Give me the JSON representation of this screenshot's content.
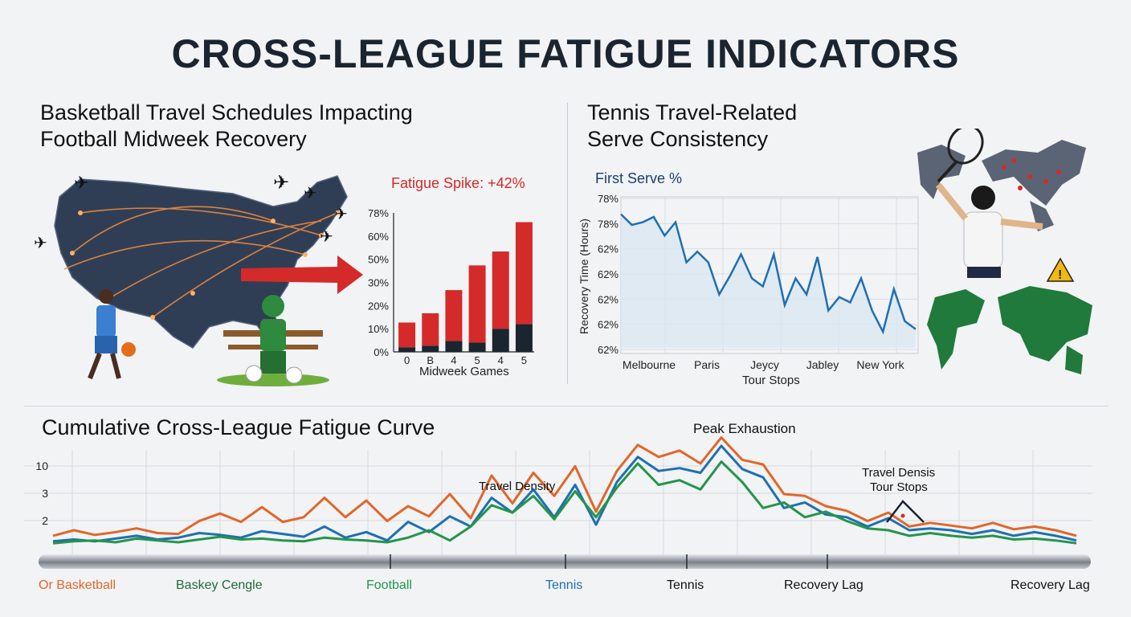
{
  "title": "CROSS-LEAGUE FATIGUE INDICATORS",
  "basketball_panel": {
    "title_line1": "Basketball Travel Schedules Impacting",
    "title_line2": "Football Midweek Recovery"
  },
  "tennis_panel": {
    "title_line1": "Tennis Travel-Related",
    "title_line2": "Serve Consistency"
  },
  "cumulative_panel": {
    "title": "Cumulative Cross-League Fatigue Curve"
  },
  "icons": [
    "usa-map-icon",
    "airplane-icon",
    "basketball-player-icon",
    "football-player-icon",
    "red-arrow-icon",
    "world-map-icon",
    "tennis-player-icon",
    "warning-icon"
  ],
  "colors": {
    "red": "#d42a2a",
    "dark": "#1b2530",
    "blue": "#1f6fb2",
    "orange": "#e0672a",
    "green": "#24954a",
    "map": "#2f3e55"
  },
  "chart_data": [
    {
      "type": "bar",
      "title": "Fatigue Spike: +42%",
      "xlabel": "Midweek Games",
      "ylabel": "",
      "categories": [
        "0",
        "B",
        "4",
        "5",
        "4",
        "5"
      ],
      "y_tick_labels": [
        "0%",
        "10%",
        "20%",
        "30%",
        "50%",
        "60%",
        "78%"
      ],
      "ylim": [
        0,
        90
      ],
      "stacked": true,
      "series": [
        {
          "values": [
            3,
            4,
            7,
            6,
            15,
            18
          ]
        },
        {
          "values": [
            16,
            21,
            33,
            50,
            50,
            66
          ]
        }
      ]
    },
    {
      "type": "line",
      "title": "First Serve %",
      "xlabel": "Tour Stops",
      "ylabel": "Recovery Time (Hours)",
      "x_tick_labels": [
        "Melbourne",
        "Paris",
        "Jeycy",
        "Jabley",
        "New York"
      ],
      "y_tick_labels": [
        "78%",
        "78%",
        "62%",
        "62%",
        "62%",
        "62%",
        "62%"
      ],
      "grid": true,
      "values": [
        80,
        76,
        77,
        79,
        72,
        77,
        62,
        66,
        62,
        50,
        57,
        65,
        56,
        53,
        65,
        46,
        56,
        50,
        64,
        44,
        49,
        47,
        56,
        44,
        36,
        52,
        40,
        37
      ]
    },
    {
      "type": "line",
      "title": "Cumulative Cross-League Fatigue Curve",
      "y_tick_labels": [
        "2",
        "3",
        "10"
      ],
      "x_labels": [
        "Or Basketball",
        "Baskey Cengle",
        "Football",
        "Tennis",
        "Tennis",
        "Recovery Lag",
        "Recovery Lag"
      ],
      "annotations": [
        "Travel Density",
        "Peak Exhaustion",
        "Travel Densis",
        "Tour Stops"
      ],
      "grid": true,
      "series": [
        {
          "color": "orange",
          "values": [
            2,
            2.6,
            2.1,
            2.4,
            2.8,
            2.3,
            2.2,
            3.6,
            4.4,
            3.5,
            5.1,
            3.5,
            4.0,
            6.1,
            4.0,
            5.8,
            3.6,
            5.2,
            4.1,
            6.5,
            3.9,
            8.5,
            5.5,
            8.8,
            6.3,
            9.5,
            4.6,
            9.0,
            11.8,
            10.5,
            11.2,
            9.8,
            12.6,
            10.2,
            9.7,
            6.5,
            6.3,
            5.2,
            4.7,
            3.6,
            4.5,
            3.0,
            3.4,
            3.1,
            2.8,
            3.4,
            2.7,
            3.0,
            2.6,
            2.0
          ]
        },
        {
          "color": "blue",
          "values": [
            1.4,
            1.6,
            1.4,
            1.7,
            2.0,
            1.6,
            1.8,
            2.3,
            2.1,
            1.8,
            2.5,
            2.2,
            1.9,
            3.0,
            1.8,
            2.4,
            1.5,
            3.5,
            2.4,
            4.1,
            3.0,
            6.1,
            4.5,
            7.0,
            4.0,
            7.5,
            3.2,
            7.8,
            10.5,
            9.0,
            9.3,
            8.8,
            11.7,
            9.2,
            8.3,
            5.0,
            5.6,
            4.3,
            4.0,
            3.0,
            3.9,
            2.6,
            2.8,
            2.6,
            2.2,
            2.6,
            2.0,
            2.4,
            2.0,
            1.5
          ]
        },
        {
          "color": "green",
          "values": [
            1.2,
            1.4,
            1.5,
            1.3,
            1.7,
            1.5,
            1.3,
            1.6,
            1.9,
            1.6,
            1.7,
            1.5,
            1.4,
            1.8,
            1.6,
            1.5,
            1.3,
            1.8,
            2.6,
            1.5,
            3.0,
            5.3,
            4.5,
            6.3,
            3.8,
            6.8,
            4.0,
            7.2,
            9.8,
            7.5,
            8.0,
            7.0,
            10.0,
            7.8,
            5.0,
            5.6,
            4.0,
            4.6,
            3.6,
            2.8,
            2.6,
            2.0,
            2.3,
            2.0,
            1.8,
            2.0,
            1.6,
            1.7,
            1.5,
            1.2
          ]
        }
      ]
    }
  ]
}
